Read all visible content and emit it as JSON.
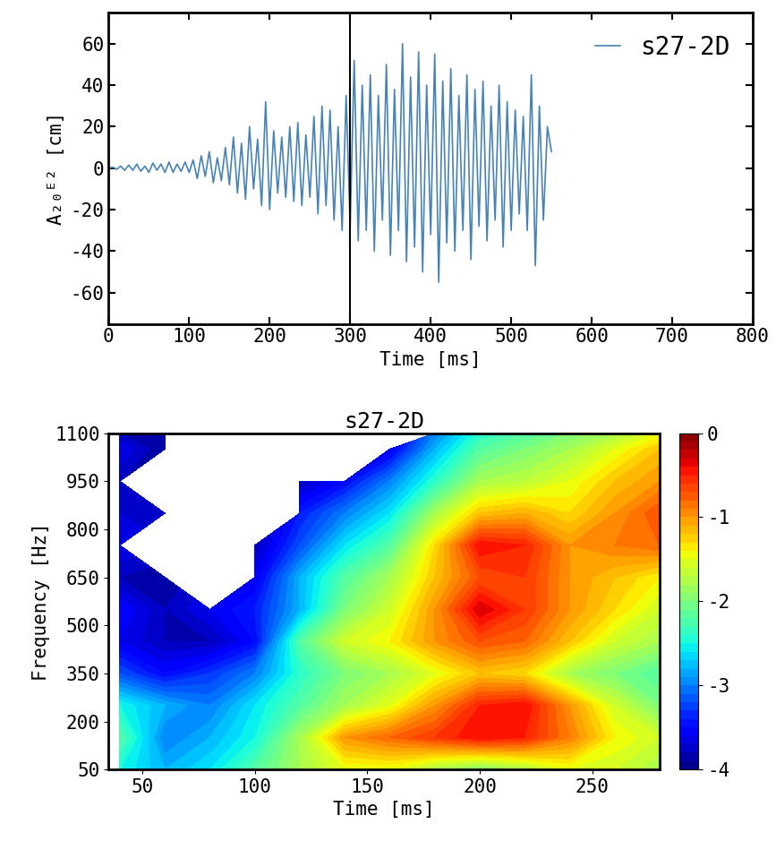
{
  "chart_data": [
    {
      "type": "line",
      "x_label": "Time [ms]",
      "y_label": "A₂₀ᴱ² [cm]",
      "x": [
        0,
        5,
        10,
        15,
        20,
        25,
        30,
        35,
        40,
        45,
        50,
        55,
        60,
        65,
        70,
        75,
        80,
        85,
        90,
        95,
        100,
        105,
        110,
        115,
        120,
        125,
        130,
        135,
        140,
        145,
        150,
        155,
        160,
        165,
        170,
        175,
        180,
        185,
        190,
        195,
        200,
        205,
        210,
        215,
        220,
        225,
        230,
        235,
        240,
        245,
        250,
        255,
        260,
        265,
        270,
        275,
        280,
        285,
        290,
        295,
        300,
        305,
        310,
        315,
        320,
        325,
        330,
        335,
        340,
        345,
        350,
        355,
        360,
        365,
        370,
        375,
        380,
        385,
        390,
        395,
        400,
        405,
        410,
        415,
        420,
        425,
        430,
        435,
        440,
        445,
        450,
        455,
        460,
        465,
        470,
        475,
        480,
        485,
        490,
        495,
        500,
        505,
        510,
        515,
        520,
        525,
        530,
        535,
        540,
        545,
        550
      ],
      "series": [
        {
          "name": "s27-2D",
          "color": "#4682b4",
          "values": [
            0,
            0.5,
            -0.5,
            1,
            -1,
            1.5,
            -1,
            2,
            -1.5,
            1,
            -2,
            2.5,
            -1,
            2,
            -2,
            3,
            -2,
            2,
            -1.5,
            3,
            -2,
            4,
            -5,
            6,
            -4,
            8,
            -7,
            5,
            -6,
            10,
            -8,
            15,
            -12,
            12,
            -15,
            20,
            -10,
            14,
            -18,
            32,
            -20,
            18,
            -12,
            15,
            -14,
            20,
            -16,
            22,
            -18,
            16,
            -14,
            25,
            -22,
            30,
            -18,
            28,
            -25,
            20,
            -30,
            35,
            -28,
            52,
            -35,
            40,
            -30,
            45,
            -40,
            35,
            -25,
            50,
            -42,
            38,
            -30,
            60,
            -45,
            44,
            -38,
            56,
            -50,
            40,
            -32,
            55,
            -55,
            42,
            -36,
            48,
            -40,
            35,
            -30,
            45,
            -44,
            38,
            -28,
            42,
            -35,
            30,
            -25,
            40,
            -38,
            32,
            -30,
            28,
            -22,
            25,
            -30,
            45,
            -47,
            30,
            -25,
            20,
            8
          ]
        }
      ],
      "vlines": [
        300
      ],
      "xlim": [
        0,
        800
      ],
      "xticks": [
        0,
        100,
        200,
        300,
        400,
        500,
        600,
        700,
        800
      ],
      "ylim": [
        -75,
        75
      ],
      "yticks": [
        -60,
        -40,
        -20,
        0,
        20,
        40,
        60
      ],
      "legend": "upper right"
    },
    {
      "type": "contour",
      "title": "s27-2D",
      "x_label": "Time [ms]",
      "y_label": "Frequency [Hz]",
      "x": [
        40,
        60,
        80,
        100,
        120,
        140,
        160,
        180,
        200,
        220,
        240,
        260,
        280
      ],
      "y": [
        50,
        150,
        250,
        350,
        450,
        550,
        650,
        750,
        850,
        950,
        1050,
        1100
      ],
      "cells": [
        [
          -2.5,
          -2.8,
          -2.6,
          -2.2,
          -1.8,
          -1.5,
          -1.5,
          -1.8,
          -2,
          -1.8,
          -1.5,
          -1.6,
          -1.8
        ],
        [
          -2.2,
          -3,
          -2.8,
          -2.5,
          -1.8,
          -1,
          -0.8,
          -0.6,
          -0.4,
          -0.5,
          -0.9,
          -1.4,
          -1.6
        ],
        [
          -2.5,
          -2.8,
          -3,
          -2.6,
          -2.2,
          -1.8,
          -1.5,
          -1,
          -0.5,
          -0.4,
          -1,
          -1.6,
          -2
        ],
        [
          -3.2,
          -3.5,
          -3.3,
          -3,
          -2.4,
          -2,
          -1.8,
          -1.5,
          -1.2,
          -1.3,
          -1.8,
          -2,
          -2.2
        ],
        [
          -3.6,
          -3.8,
          -3.8,
          -3.5,
          -2.2,
          -1.6,
          -1.4,
          -1,
          -0.7,
          -0.8,
          -1.2,
          -1.6,
          -1.8
        ],
        [
          -3.5,
          -3.8,
          -3.6,
          -3.4,
          -2.8,
          -2,
          -1.6,
          -1,
          -0.3,
          -0.6,
          -1,
          -1.3,
          -1.6
        ],
        [
          -3.8,
          -3.9,
          null,
          -3.6,
          -2.8,
          -2.2,
          -1.8,
          -1.2,
          -0.7,
          -0.6,
          -1,
          -1.2,
          -1.4
        ],
        [
          -3.6,
          null,
          null,
          -3.8,
          -3.2,
          -2.6,
          -2.2,
          -1.3,
          -0.4,
          -0.5,
          -1,
          -0.9,
          -0.8
        ],
        [
          -3.7,
          -3.8,
          null,
          null,
          -3.4,
          -3,
          -2.6,
          -1.8,
          -1.2,
          -1.1,
          -1.3,
          -1,
          -0.7
        ],
        [
          -3.8,
          null,
          null,
          null,
          -3.8,
          -3.5,
          -3,
          -2.4,
          -1.8,
          -1.7,
          -1.5,
          -1.2,
          -1
        ],
        [
          -3.6,
          -3.9,
          null,
          null,
          null,
          null,
          -3.6,
          -2.8,
          -2.2,
          -2,
          -1.8,
          -1.5,
          -1.2
        ],
        [
          -3.8,
          -3.9,
          null,
          null,
          null,
          null,
          null,
          -3,
          -2.4,
          -2.2,
          -2,
          -1.8,
          -1.5
        ]
      ],
      "xlim": [
        35,
        280
      ],
      "xticks": [
        50,
        100,
        150,
        200,
        250
      ],
      "ylim": [
        50,
        1100
      ],
      "yticks": [
        50,
        200,
        350,
        500,
        650,
        800,
        950,
        1100
      ],
      "colorbar_range": [
        -4,
        0
      ],
      "colorbar_ticks": [
        0,
        -1,
        -2,
        -3,
        -4
      ]
    }
  ]
}
